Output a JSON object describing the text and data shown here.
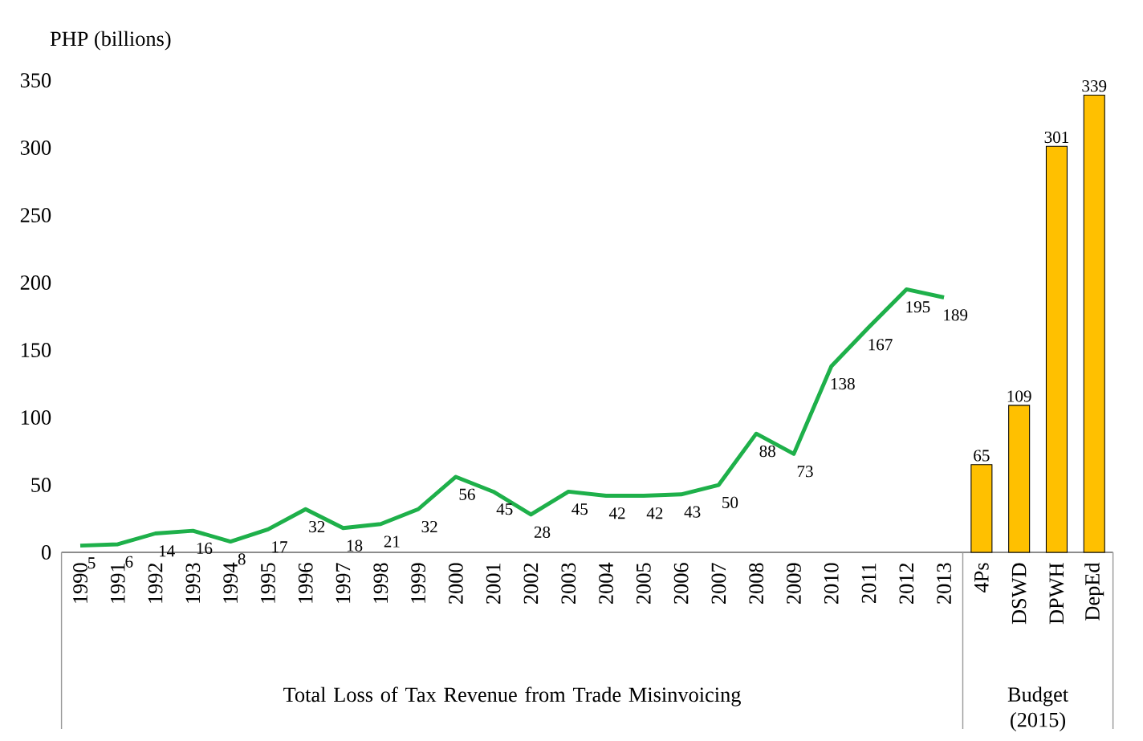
{
  "chart_data": {
    "type": "line",
    "ylabel": "PHP (billions)",
    "categories": [
      "1990",
      "1991",
      "1992",
      "1993",
      "1994",
      "1995",
      "1996",
      "1997",
      "1998",
      "1999",
      "2000",
      "2001",
      "2002",
      "2003",
      "2004",
      "2005",
      "2006",
      "2007",
      "2008",
      "2009",
      "2010",
      "2011",
      "2012",
      "2013",
      "4Ps",
      "DSWD",
      "DPWH",
      "DepEd"
    ],
    "series": [
      {
        "color": "#1eb04a",
        "values": [
          5,
          6,
          14,
          16,
          8,
          17,
          32,
          18,
          21,
          32,
          56,
          45,
          28,
          45,
          42,
          42,
          43,
          50,
          88,
          73,
          138,
          167,
          195,
          189,
          null,
          null,
          null,
          null
        ]
      },
      {
        "type": "bar",
        "color": "#ffc000",
        "values": [
          null,
          null,
          null,
          null,
          null,
          null,
          null,
          null,
          null,
          null,
          null,
          null,
          null,
          null,
          null,
          null,
          null,
          null,
          null,
          null,
          null,
          null,
          null,
          null,
          65,
          109,
          301,
          339
        ]
      }
    ],
    "ylim": [
      0,
      350
    ],
    "yticks": [
      0,
      50,
      100,
      150,
      200,
      250,
      300,
      350
    ],
    "data_labels": true,
    "annotations": [
      "Total Loss of Tax Revenue from Trade Misinvoicing",
      "Budget (2015)"
    ]
  }
}
